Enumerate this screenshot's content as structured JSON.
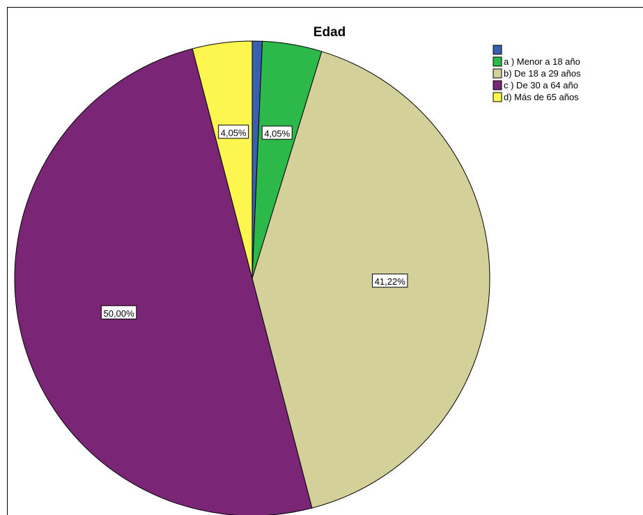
{
  "chart_data": {
    "type": "pie",
    "title": "Edad",
    "categories": [
      "",
      "a ) Menor a 18 año",
      "b) De 18 a 29 años",
      "c ) De 30 a 64 año",
      "d) Más de 65 años"
    ],
    "values": [
      0.68,
      4.05,
      41.22,
      50.0,
      4.05
    ],
    "data_labels": [
      "",
      "4,05%",
      "41,22%",
      "50,00%",
      "4,05%"
    ],
    "colors": [
      "#3a5fb0",
      "#2db84a",
      "#d4d09a",
      "#7b2577",
      "#fdf64f"
    ],
    "start_angle": "12 o'clock",
    "direction": "clockwise",
    "legend_position": "top-right"
  }
}
